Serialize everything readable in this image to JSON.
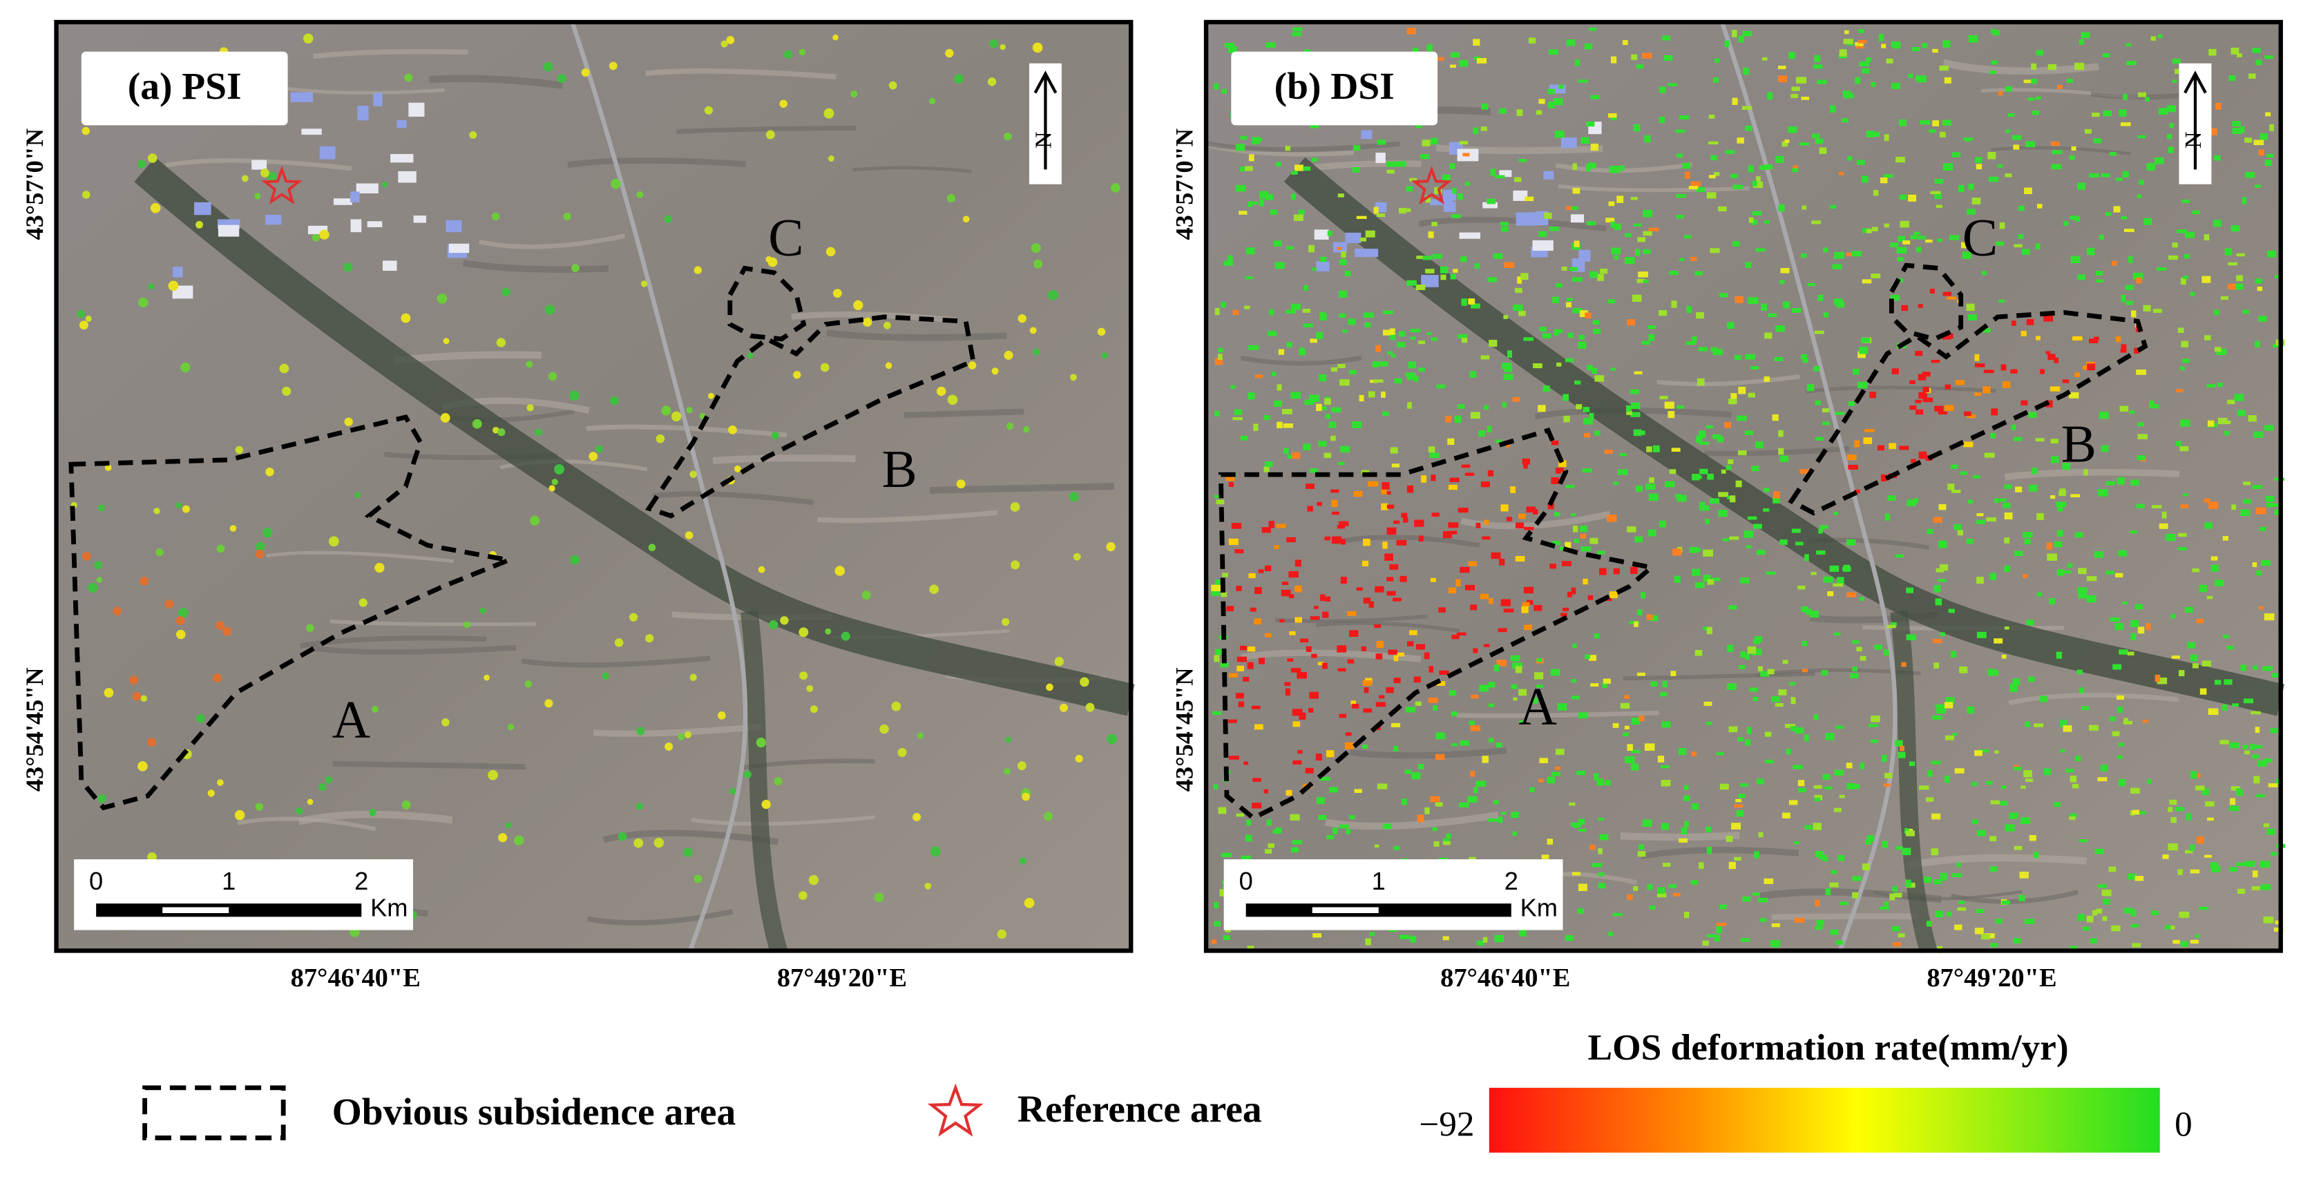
{
  "panels": [
    {
      "label": "(a) PSI",
      "lat_labels": [
        "43°57'0\"N",
        "43°54'45\"N"
      ],
      "lon_labels": [
        "87°46'40\"E",
        "87°49'20\"E"
      ],
      "scale_labels": [
        "0",
        "1",
        "2",
        "Km"
      ],
      "areas": [
        "A",
        "B",
        "C"
      ],
      "north": "N"
    },
    {
      "label": "(b) DSI",
      "lat_labels": [
        "43°57'0\"N",
        "43°54'45\"N"
      ],
      "lon_labels": [
        "87°46'40\"E",
        "87°49'20\"E"
      ],
      "scale_labels": [
        "0",
        "1",
        "2",
        "Km"
      ],
      "areas": [
        "A",
        "B",
        "C"
      ],
      "north": "N"
    }
  ],
  "legend": {
    "subsidence": "Obvious subsidence area",
    "reference": "Reference area"
  },
  "colorbar": {
    "title": "LOS deformation rate(mm/yr)",
    "min_label": "−92",
    "max_label": "0"
  }
}
